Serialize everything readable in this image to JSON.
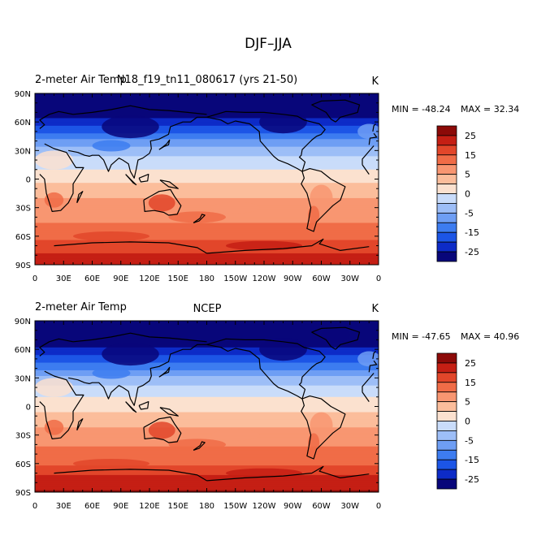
{
  "figure_title": "DJF–JJA",
  "colors": {
    "levels": [
      "#08067a",
      "#0d2bc7",
      "#1c55e6",
      "#3d7cf0",
      "#6e9ef4",
      "#9dbef7",
      "#c9dcfa",
      "#fbe1cf",
      "#fbbd9b",
      "#f89671",
      "#f06c47",
      "#e2462a",
      "#c51f14",
      "#8c0a08"
    ]
  },
  "chart_data": [
    {
      "type": "heatmap",
      "left_title": "2-meter Air Temp",
      "center_title": "N18_f19_tn11_080617 (yrs 21-50)",
      "units": "K",
      "min_label": "MIN = -48.24",
      "max_label": "MAX =  32.34",
      "xlabel": "",
      "ylabel": "",
      "x_ticks": [
        "0",
        "30E",
        "60E",
        "90E",
        "120E",
        "150E",
        "180",
        "150W",
        "120W",
        "90W",
        "60W",
        "30W",
        "0"
      ],
      "y_ticks": [
        "90N",
        "60N",
        "30N",
        "0",
        "30S",
        "60S",
        "90S"
      ],
      "colorbar_labels": [
        "25",
        "15",
        "5",
        "0",
        "-5",
        "-15",
        "-25"
      ],
      "zonal_mean_profile": {
        "lat": [
          90,
          75,
          60,
          45,
          30,
          15,
          0,
          -15,
          -30,
          -45,
          -60,
          -75,
          -90
        ],
        "value": [
          -40,
          -38,
          -30,
          -20,
          -10,
          -4,
          1,
          6,
          10,
          12,
          16,
          22,
          25
        ]
      }
    },
    {
      "type": "heatmap",
      "left_title": "2-meter Air Temp",
      "center_title": "NCEP",
      "units": "K",
      "min_label": "MIN = -47.65",
      "max_label": "MAX =  40.96",
      "xlabel": "",
      "ylabel": "",
      "x_ticks": [
        "0",
        "30E",
        "60E",
        "90E",
        "120E",
        "150E",
        "180",
        "150W",
        "120W",
        "90W",
        "60W",
        "30W",
        "0"
      ],
      "y_ticks": [
        "90N",
        "60N",
        "30N",
        "0",
        "30S",
        "60S",
        "90S"
      ],
      "colorbar_labels": [
        "25",
        "15",
        "5",
        "0",
        "-5",
        "-15",
        "-25"
      ],
      "zonal_mean_profile": {
        "lat": [
          90,
          75,
          60,
          45,
          30,
          15,
          0,
          -15,
          -30,
          -45,
          -60,
          -75,
          -90
        ],
        "value": [
          -40,
          -39,
          -32,
          -22,
          -11,
          -4,
          1,
          5,
          10,
          13,
          17,
          24,
          28
        ]
      }
    }
  ]
}
